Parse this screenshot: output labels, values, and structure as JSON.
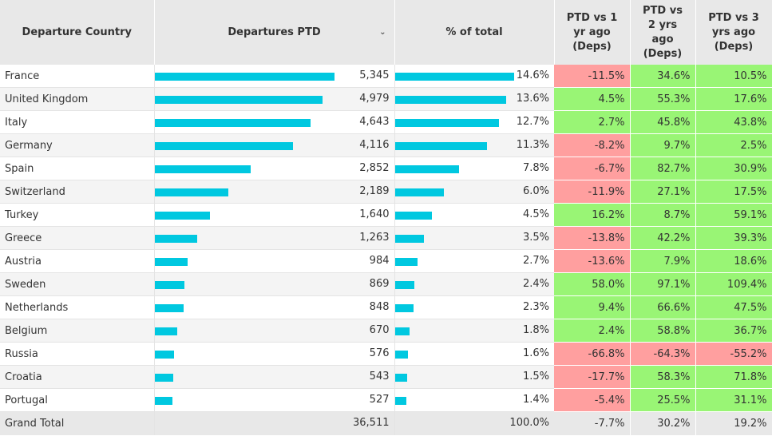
{
  "headers": {
    "country": "Departure Country",
    "departures": "Departures PTD",
    "pct": "% of total",
    "vs1": "PTD vs 1 yr ago (Deps)",
    "vs2": "PTD vs 2 yrs ago (Deps)",
    "vs3": "PTD vs 3 yrs ago (Deps)"
  },
  "sort_icon": "chevron-down-icon",
  "colors": {
    "bar": "#00c8e0",
    "positive": "#99f575",
    "negative": "#ff9f9f",
    "header_bg": "#e8e8e8"
  },
  "max_departures": 5345,
  "max_pct": 14.6,
  "rows": [
    {
      "country": "France",
      "departures": "5,345",
      "dep_value": 5345,
      "pct": "14.6%",
      "pct_value": 14.6,
      "vs1": "-11.5%",
      "vs2": "34.6%",
      "vs3": "10.5%"
    },
    {
      "country": "United Kingdom",
      "departures": "4,979",
      "dep_value": 4979,
      "pct": "13.6%",
      "pct_value": 13.6,
      "vs1": "4.5%",
      "vs2": "55.3%",
      "vs3": "17.6%"
    },
    {
      "country": "Italy",
      "departures": "4,643",
      "dep_value": 4643,
      "pct": "12.7%",
      "pct_value": 12.7,
      "vs1": "2.7%",
      "vs2": "45.8%",
      "vs3": "43.8%"
    },
    {
      "country": "Germany",
      "departures": "4,116",
      "dep_value": 4116,
      "pct": "11.3%",
      "pct_value": 11.3,
      "vs1": "-8.2%",
      "vs2": "9.7%",
      "vs3": "2.5%"
    },
    {
      "country": "Spain",
      "departures": "2,852",
      "dep_value": 2852,
      "pct": "7.8%",
      "pct_value": 7.8,
      "vs1": "-6.7%",
      "vs2": "82.7%",
      "vs3": "30.9%"
    },
    {
      "country": "Switzerland",
      "departures": "2,189",
      "dep_value": 2189,
      "pct": "6.0%",
      "pct_value": 6.0,
      "vs1": "-11.9%",
      "vs2": "27.1%",
      "vs3": "17.5%"
    },
    {
      "country": "Turkey",
      "departures": "1,640",
      "dep_value": 1640,
      "pct": "4.5%",
      "pct_value": 4.5,
      "vs1": "16.2%",
      "vs2": "8.7%",
      "vs3": "59.1%"
    },
    {
      "country": "Greece",
      "departures": "1,263",
      "dep_value": 1263,
      "pct": "3.5%",
      "pct_value": 3.5,
      "vs1": "-13.8%",
      "vs2": "42.2%",
      "vs3": "39.3%"
    },
    {
      "country": "Austria",
      "departures": "984",
      "dep_value": 984,
      "pct": "2.7%",
      "pct_value": 2.7,
      "vs1": "-13.6%",
      "vs2": "7.9%",
      "vs3": "18.6%"
    },
    {
      "country": "Sweden",
      "departures": "869",
      "dep_value": 869,
      "pct": "2.4%",
      "pct_value": 2.4,
      "vs1": "58.0%",
      "vs2": "97.1%",
      "vs3": "109.4%"
    },
    {
      "country": "Netherlands",
      "departures": "848",
      "dep_value": 848,
      "pct": "2.3%",
      "pct_value": 2.3,
      "vs1": "9.4%",
      "vs2": "66.6%",
      "vs3": "47.5%"
    },
    {
      "country": "Belgium",
      "departures": "670",
      "dep_value": 670,
      "pct": "1.8%",
      "pct_value": 1.8,
      "vs1": "2.4%",
      "vs2": "58.8%",
      "vs3": "36.7%"
    },
    {
      "country": "Russia",
      "departures": "576",
      "dep_value": 576,
      "pct": "1.6%",
      "pct_value": 1.6,
      "vs1": "-66.8%",
      "vs2": "-64.3%",
      "vs3": "-55.2%"
    },
    {
      "country": "Croatia",
      "departures": "543",
      "dep_value": 543,
      "pct": "1.5%",
      "pct_value": 1.5,
      "vs1": "-17.7%",
      "vs2": "58.3%",
      "vs3": "71.8%"
    },
    {
      "country": "Portugal",
      "departures": "527",
      "dep_value": 527,
      "pct": "1.4%",
      "pct_value": 1.4,
      "vs1": "-5.4%",
      "vs2": "25.5%",
      "vs3": "31.1%"
    }
  ],
  "total": {
    "country": "Grand Total",
    "departures": "36,511",
    "pct": "100.0%",
    "vs1": "-7.7%",
    "vs2": "30.2%",
    "vs3": "19.2%"
  }
}
